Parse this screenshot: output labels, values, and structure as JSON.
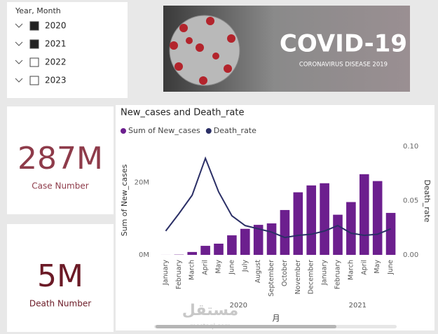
{
  "slicer": {
    "title": "Year, Month",
    "items": [
      {
        "label": "2020",
        "checked": true
      },
      {
        "label": "2021",
        "checked": true
      },
      {
        "label": "2022",
        "checked": false
      },
      {
        "label": "2023",
        "checked": false
      }
    ]
  },
  "banner": {
    "title": "COVID-19",
    "subtitle": "CORONAVIRUS DISEASE 2019"
  },
  "cards": [
    {
      "value": "287M",
      "label": "Case Number",
      "color": "#8e3b4a"
    },
    {
      "value": "5M",
      "label": "Death Number",
      "color": "#6b1a26"
    }
  ],
  "watermark": {
    "arabic": "مستقل",
    "site": "mostaql.com"
  },
  "chart_data": {
    "type": "combo",
    "title": "New_cases and Death_rate",
    "x_label": "月",
    "y_label": "Sum of New_cases",
    "y2_label": "Death_rate",
    "categories": [
      "January",
      "February",
      "March",
      "April",
      "May",
      "June",
      "July",
      "August",
      "September",
      "October",
      "November",
      "December",
      "January",
      "February",
      "March",
      "April",
      "May",
      "June"
    ],
    "x_groups": [
      "2020",
      "2021"
    ],
    "series": [
      {
        "name": "Sum of New_cases",
        "type": "bar",
        "color": "#6c1f8e",
        "values": [
          10000,
          70000,
          800000,
          2500000,
          3100000,
          5400000,
          7200000,
          8300000,
          8700000,
          12400000,
          17300000,
          19200000,
          19800000,
          11100000,
          14600000,
          22300000,
          20400000,
          11600000
        ]
      },
      {
        "name": "Death_rate",
        "type": "line",
        "axis": "y2",
        "color": "#2b2f66",
        "values": [
          0.022,
          0.038,
          0.055,
          0.089,
          0.058,
          0.036,
          0.027,
          0.024,
          0.021,
          0.016,
          0.018,
          0.019,
          0.022,
          0.027,
          0.02,
          0.018,
          0.019,
          0.024
        ]
      }
    ],
    "ylim": [
      0,
      30000000
    ],
    "yticks": [
      {
        "value": 0,
        "label": "0M"
      },
      {
        "value": 20000000,
        "label": "20M"
      }
    ],
    "y2lim": [
      0,
      0.1
    ],
    "y2ticks": [
      {
        "value": 0,
        "label": "0.00"
      },
      {
        "value": 0.05,
        "label": "0.05"
      },
      {
        "value": 0.1,
        "label": "0.10"
      }
    ],
    "legend": "top-left"
  }
}
